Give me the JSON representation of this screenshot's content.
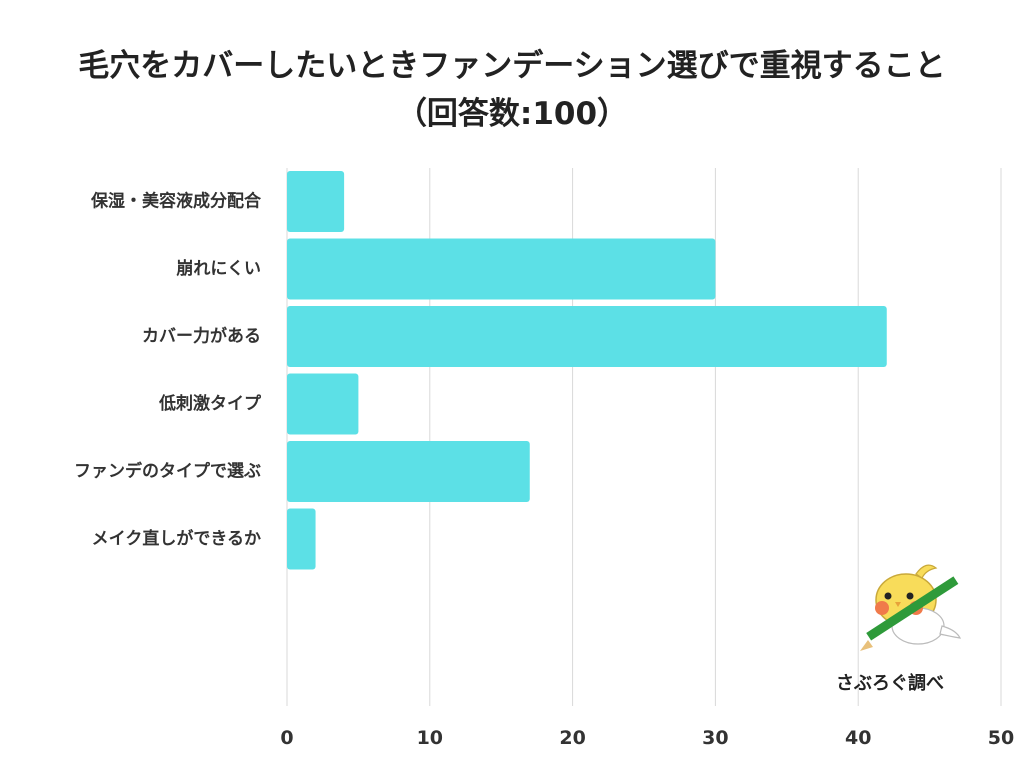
{
  "title_line1": "毛穴をカバーしたいときファンデーション選びで重視すること",
  "title_line2": "（回答数:100）",
  "credit": "さぶろぐ調べ",
  "mascot_icon": "bird-with-pencil-icon",
  "colors": {
    "bar": "#5ce0e6",
    "grid": "#d9d9d9",
    "text": "#222222",
    "mascot_body": "#f8dc5a",
    "mascot_cheek": "#f07a4a",
    "pencil": "#2e9a3a"
  },
  "chart_data": {
    "type": "bar",
    "orientation": "horizontal",
    "categories": [
      "保湿・美容液成分配合",
      "崩れにくい",
      "カバー力がある",
      "低刺激タイプ",
      "ファンデのタイプで選ぶ",
      "メイク直しができるか"
    ],
    "values": [
      4,
      30,
      42,
      5,
      17,
      2
    ],
    "xlim": [
      0,
      50
    ],
    "xticks": [
      0,
      10,
      20,
      30,
      40,
      50
    ],
    "grid": true,
    "legend": "none"
  }
}
